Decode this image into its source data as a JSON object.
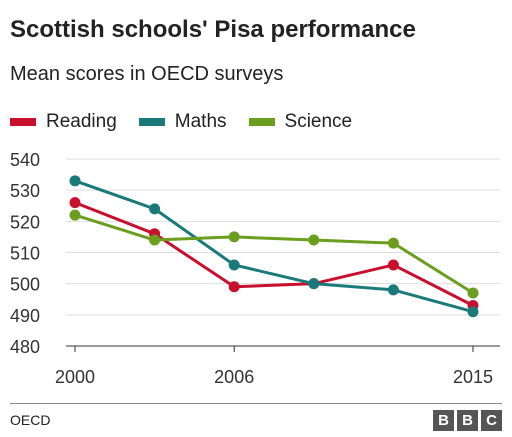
{
  "chart_data": {
    "type": "line",
    "title": "Scottish schools' Pisa performance",
    "subtitle": "Mean scores in OECD surveys",
    "x": [
      2000,
      2003,
      2006,
      2009,
      2012,
      2015
    ],
    "x_tick_labels": [
      "2000",
      "2006",
      "2015"
    ],
    "x_tick_values": [
      2000,
      2006,
      2015
    ],
    "y_ticks": [
      "540",
      "530",
      "520",
      "510",
      "500",
      "490",
      "480"
    ],
    "ylim": [
      480,
      540
    ],
    "grid": true,
    "legend_placement": "top-left",
    "series": [
      {
        "name": "Reading",
        "color": "#c8102e",
        "values": [
          526,
          516,
          499,
          500,
          506,
          493
        ]
      },
      {
        "name": "Maths",
        "color": "#1a7a7a",
        "values": [
          533,
          524,
          506,
          500,
          498,
          491
        ]
      },
      {
        "name": "Science",
        "color": "#6b9e1f",
        "values": [
          522,
          514,
          515,
          514,
          513,
          497
        ]
      }
    ]
  },
  "footer": {
    "source": "OECD",
    "logo_letters": [
      "B",
      "B",
      "C"
    ]
  }
}
